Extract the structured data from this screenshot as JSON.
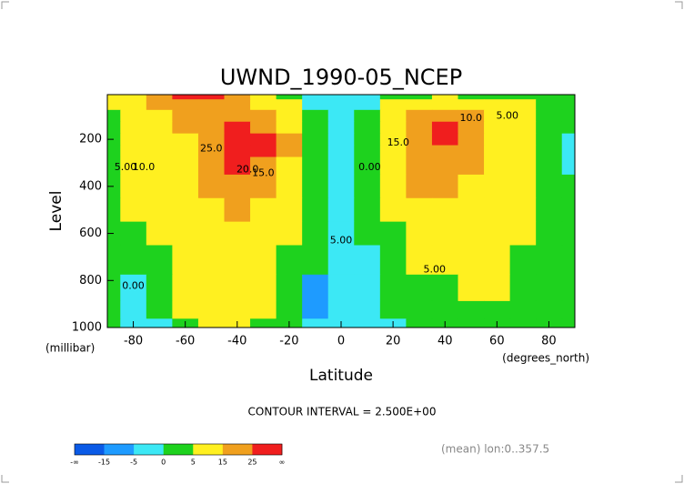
{
  "chart_data": {
    "type": "contour",
    "title": "UWND_1990-05_NCEP",
    "x_label": "Latitude",
    "x_unit": "(degrees_north)",
    "y_label": "Level",
    "y_unit": "(millibar)",
    "subtitle": "CONTOUR INTERVAL = 2.500E+00",
    "note": "(mean) lon:0..357.5",
    "xlim": [
      -90,
      90
    ],
    "ylim": [
      1000,
      10
    ],
    "xticks": [
      -80,
      -60,
      -40,
      -20,
      0,
      20,
      40,
      60,
      80
    ],
    "yticks": [
      200,
      400,
      600,
      800,
      1000
    ],
    "x": [
      -90,
      -80,
      -70,
      -60,
      -50,
      -40,
      -30,
      -20,
      -10,
      0,
      10,
      20,
      30,
      40,
      50,
      60,
      70,
      80,
      90
    ],
    "levels_y": [
      10,
      50,
      100,
      150,
      200,
      250,
      300,
      400,
      500,
      600,
      700,
      850,
      925,
      1000
    ],
    "values": [
      [
        5,
        8,
        20,
        28,
        30,
        22,
        12,
        3,
        -2,
        -3,
        -2,
        0,
        3,
        5,
        4,
        4,
        3,
        2,
        1
      ],
      [
        5,
        8,
        16,
        22,
        24,
        20,
        14,
        5,
        -1,
        -3,
        -1,
        5,
        12,
        14,
        12,
        8,
        6,
        4,
        2
      ],
      [
        4,
        7,
        12,
        17,
        22,
        22,
        18,
        8,
        0,
        -3,
        0,
        8,
        18,
        20,
        15,
        10,
        7,
        4,
        2
      ],
      [
        4,
        7,
        10,
        15,
        22,
        27,
        24,
        12,
        2,
        -3,
        1,
        12,
        24,
        26,
        18,
        12,
        8,
        4,
        1
      ],
      [
        4,
        7,
        10,
        14,
        22,
        28,
        27,
        16,
        3,
        -3,
        1,
        12,
        24,
        27,
        18,
        12,
        8,
        3,
        -1
      ],
      [
        4,
        6,
        10,
        13,
        22,
        28,
        26,
        16,
        2,
        -3,
        0,
        10,
        22,
        24,
        17,
        12,
        8,
        3,
        -1
      ],
      [
        4,
        6,
        9,
        12,
        20,
        26,
        23,
        14,
        1,
        -2,
        0,
        9,
        19,
        21,
        15,
        11,
        9,
        3,
        -1
      ],
      [
        4,
        5,
        8,
        11,
        17,
        21,
        18,
        11,
        1,
        -3,
        0,
        7,
        15,
        17,
        13,
        10,
        7,
        3,
        2
      ],
      [
        4,
        5,
        7,
        10,
        14,
        17,
        14,
        8,
        1,
        -5,
        0,
        5,
        12,
        13,
        11,
        9,
        6,
        3,
        2
      ],
      [
        3,
        3,
        6,
        9,
        12,
        14,
        11,
        6,
        1,
        -5,
        0,
        4,
        9,
        11,
        10,
        8,
        5,
        3,
        2
      ],
      [
        3,
        1,
        4,
        8,
        11,
        12,
        9,
        4,
        0,
        -5,
        -1,
        2,
        6,
        8,
        8,
        7,
        4,
        3,
        2
      ],
      [
        2,
        -1,
        1,
        6,
        9,
        9,
        6,
        2,
        -6,
        -2,
        -2,
        1,
        3,
        4,
        5,
        5,
        3,
        2,
        2
      ],
      [
        2,
        -2,
        0,
        5,
        8,
        8,
        5,
        1,
        -6,
        -2,
        -2,
        0,
        2,
        3,
        4,
        4,
        2,
        1,
        2
      ],
      [
        1,
        -2,
        -1,
        4,
        7,
        7,
        4,
        0,
        -5,
        -2,
        -2,
        -1,
        1,
        2,
        3,
        3,
        1,
        0,
        1
      ]
    ],
    "color_levels": [
      -15,
      -5,
      0,
      5,
      15,
      25
    ],
    "colors": [
      "#0a5ae6",
      "#1e9bff",
      "#3ce8f5",
      "#1ed21e",
      "#fff020",
      "#f0a01e",
      "#f01e1e"
    ],
    "colorbar_labels": [
      "-∞",
      "-15",
      "-5",
      "0",
      "5",
      "15",
      "25",
      "∞"
    ],
    "contour_labels": [
      {
        "text": "5.00",
        "x": -83,
        "y": 320
      },
      {
        "text": "10.0",
        "x": -76,
        "y": 320
      },
      {
        "text": "25.0",
        "x": -50,
        "y": 240
      },
      {
        "text": "20.0",
        "x": -36,
        "y": 330
      },
      {
        "text": "15.0",
        "x": -30,
        "y": 345
      },
      {
        "text": "0.00",
        "x": 11,
        "y": 320
      },
      {
        "text": "5.00",
        "x": 0,
        "y": 630
      },
      {
        "text": "0.00",
        "x": -80,
        "y": 825
      },
      {
        "text": "10.0",
        "x": 50,
        "y": 110
      },
      {
        "text": "5.00",
        "x": 64,
        "y": 100
      },
      {
        "text": "15.0",
        "x": 22,
        "y": 215
      },
      {
        "text": "5.00",
        "x": 36,
        "y": 755
      }
    ]
  }
}
